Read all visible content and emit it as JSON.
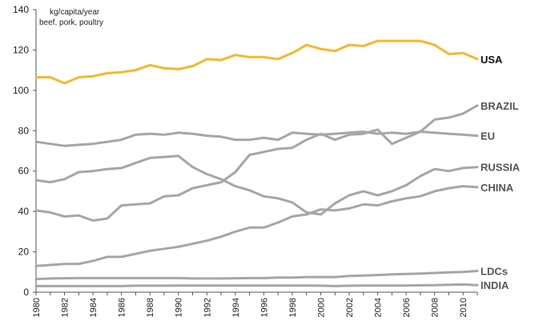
{
  "chart_data": {
    "type": "line",
    "unit_note": [
      "kg/capita/year",
      "beef, pork, poultry"
    ],
    "ylim": [
      0,
      140
    ],
    "yticks": [
      0,
      20,
      40,
      60,
      80,
      100,
      120,
      140
    ],
    "x": [
      1980,
      1981,
      1982,
      1983,
      1984,
      1985,
      1986,
      1987,
      1988,
      1989,
      1990,
      1991,
      1992,
      1993,
      1994,
      1995,
      1996,
      1997,
      1998,
      1999,
      2000,
      2001,
      2002,
      2003,
      2004,
      2005,
      2006,
      2007,
      2008,
      2009,
      2010,
      2011
    ],
    "xticks": [
      1980,
      1982,
      1984,
      1986,
      1988,
      1990,
      1992,
      1994,
      1996,
      1998,
      2000,
      2002,
      2004,
      2006,
      2008,
      2010
    ],
    "grid": false,
    "legend": "inline labels at line ends (right)",
    "colors": {
      "highlight": "#f5b82e",
      "other": "#a6a6a6",
      "axis": "#555555"
    },
    "series": [
      {
        "name": "USA",
        "highlight": true,
        "values": [
          106.5,
          106.5,
          103.5,
          106.5,
          107,
          108.5,
          109,
          110,
          112.5,
          111,
          110.5,
          112,
          115.5,
          115,
          117.5,
          116.5,
          116.5,
          115.5,
          118.5,
          122.5,
          120.5,
          119.5,
          122.5,
          122,
          124.5,
          124.5,
          124.5,
          124.5,
          122.5,
          118,
          118.5,
          115.5
        ]
      },
      {
        "name": "BRAZIL",
        "highlight": false,
        "values": [
          40.5,
          39.5,
          37.5,
          38,
          35.5,
          36.5,
          43,
          43.5,
          44,
          47.5,
          48,
          51.5,
          53,
          54.5,
          59.5,
          68,
          69.5,
          71,
          71.5,
          75.5,
          78.5,
          75.5,
          78,
          78.5,
          80.5,
          73.5,
          76.5,
          79.5,
          85.5,
          86.5,
          88.5,
          92.5
        ]
      },
      {
        "name": "EU",
        "highlight": false,
        "values": [
          74.5,
          73.5,
          72.5,
          73,
          73.5,
          74.5,
          75.5,
          78,
          78.5,
          78,
          79,
          78.5,
          77.5,
          77,
          75.5,
          75.5,
          76.5,
          75.5,
          79,
          78.5,
          78,
          78.5,
          79,
          79.5,
          78.5,
          79,
          78.5,
          79.5,
          79,
          78.5,
          78,
          77.5
        ]
      },
      {
        "name": "RUSSIA",
        "highlight": false,
        "values": [
          55.5,
          54.5,
          56,
          59.5,
          60,
          61,
          61.5,
          64,
          66.5,
          67,
          67.5,
          62,
          58.5,
          56,
          52.5,
          50.5,
          47.5,
          46.5,
          44.5,
          39.5,
          38.5,
          44,
          48,
          50,
          48,
          50,
          53,
          57.5,
          61,
          60,
          61.5,
          62
        ]
      },
      {
        "name": "CHINA",
        "highlight": false,
        "values": [
          13,
          13.5,
          14,
          14,
          15.5,
          17.5,
          17.5,
          19,
          20.5,
          21.5,
          22.5,
          24,
          25.5,
          27.5,
          30,
          32,
          32,
          34.5,
          37.5,
          38.5,
          41,
          40.5,
          41.5,
          43.5,
          43,
          45,
          46.5,
          47.5,
          50,
          51.5,
          52.5,
          52
        ]
      },
      {
        "name": "LDCs",
        "highlight": false,
        "values": [
          6.5,
          6.8,
          6.9,
          7,
          7,
          7,
          7,
          7,
          7,
          7,
          7,
          6.8,
          6.8,
          6.8,
          6.9,
          7,
          7,
          7.2,
          7.2,
          7.5,
          7.5,
          7.5,
          8,
          8.2,
          8.5,
          8.8,
          9,
          9.2,
          9.5,
          9.8,
          10,
          10.5
        ]
      },
      {
        "name": "INDIA",
        "highlight": false,
        "values": [
          3,
          3,
          3,
          3,
          3,
          3,
          3,
          3.2,
          3.2,
          3.2,
          3.3,
          3.3,
          3.3,
          3.3,
          3.3,
          3.3,
          3.3,
          3.3,
          3.3,
          3.3,
          3.2,
          3,
          3.2,
          3.3,
          3.3,
          3.3,
          3.3,
          3.4,
          3.5,
          3.7,
          3.8,
          3.5
        ]
      }
    ]
  }
}
